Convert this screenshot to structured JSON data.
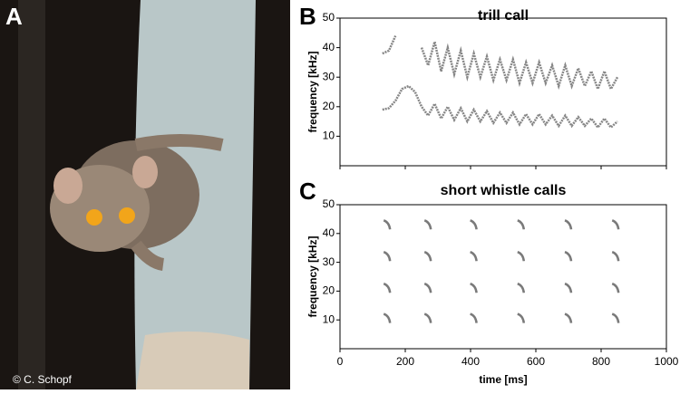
{
  "photo": {
    "panel_label": "A",
    "credit": "© C. Schopf"
  },
  "chart_data": [
    {
      "type": "spectrogram",
      "panel_label": "B",
      "title": "trill call",
      "y_label": "frequency [kHz]",
      "xlim": [
        0,
        1000
      ],
      "ylim": [
        0,
        50
      ],
      "xticks": [
        0,
        200,
        400,
        600,
        800,
        1000
      ],
      "yticks": [
        10,
        20,
        30,
        40,
        50
      ],
      "xtick_labels": false,
      "color": "#222222",
      "x": [
        130,
        150,
        170,
        190,
        210,
        230,
        250,
        270,
        290,
        310,
        330,
        350,
        370,
        390,
        410,
        430,
        450,
        470,
        490,
        510,
        530,
        550,
        570,
        590,
        610,
        630,
        650,
        670,
        690,
        710,
        730,
        750,
        770,
        790,
        810,
        830,
        850
      ],
      "series": [
        {
          "values": [
            19,
            19.5,
            22,
            26,
            27,
            25,
            20,
            17,
            21,
            16,
            20,
            15.5,
            19.5,
            15,
            19,
            15,
            18.5,
            14.5,
            18,
            14.5,
            18,
            14,
            17.5,
            14,
            17.5,
            14,
            17,
            13.5,
            17,
            13.5,
            16.5,
            13.5,
            16,
            13,
            16,
            13,
            15
          ]
        },
        {
          "values": [
            38,
            39,
            44,
            null,
            null,
            null,
            40,
            34,
            42,
            32,
            40,
            31,
            39,
            30,
            38,
            30,
            37,
            29,
            36,
            29,
            36,
            28,
            35,
            28,
            35,
            28,
            34,
            27,
            34,
            27,
            33,
            27,
            32,
            26,
            32,
            26,
            30
          ]
        }
      ]
    },
    {
      "type": "spectrogram",
      "panel_label": "C",
      "title": "short whistle calls",
      "y_label": "frequency [kHz]",
      "x_label": "time [ms]",
      "xlim": [
        0,
        1000
      ],
      "ylim": [
        0,
        50
      ],
      "xticks": [
        0,
        200,
        400,
        600,
        800,
        1000
      ],
      "yticks": [
        10,
        20,
        30,
        40,
        50
      ],
      "xtick_labels": true,
      "color": "#222222",
      "calls_x": [
        145,
        270,
        410,
        555,
        700,
        845
      ],
      "harmonics": [
        10.5,
        21,
        32,
        43
      ]
    }
  ]
}
